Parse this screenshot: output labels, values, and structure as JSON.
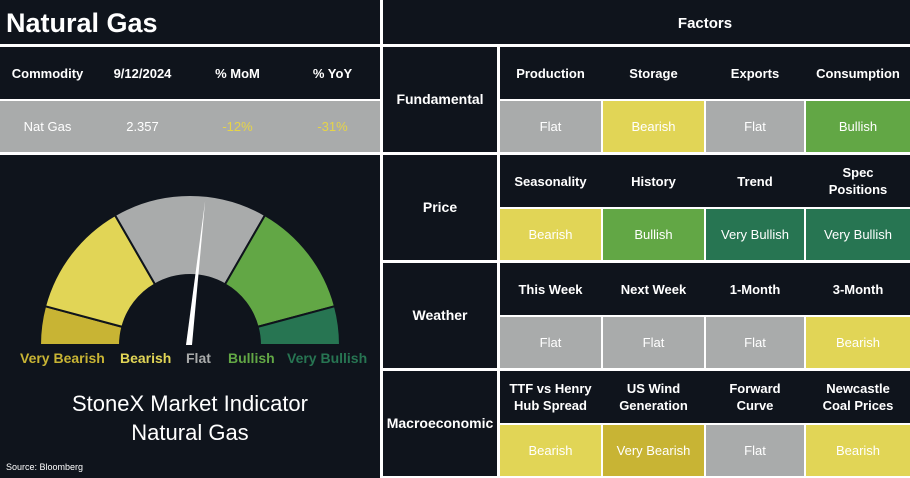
{
  "header": {
    "title": "Natural Gas",
    "factors_title": "Factors"
  },
  "commodity_table": {
    "columns": [
      "Commodity",
      "9/12/2024",
      "% MoM",
      "% YoY"
    ],
    "row": [
      "Nat Gas",
      "2.357",
      "-12%",
      "-31%"
    ]
  },
  "gauge": {
    "labels": [
      "Very Bearish",
      "Bearish",
      "Flat",
      "Bullish",
      "Very Bullish"
    ],
    "reading": "Flat",
    "indicator_line1": "StoneX Market Indicator",
    "indicator_line2": "Natural Gas"
  },
  "source": "Source: Bloomberg",
  "factors": [
    {
      "category": "Fundamental",
      "items": [
        {
          "name": "Production",
          "value": "Flat"
        },
        {
          "name": "Storage",
          "value": "Bearish"
        },
        {
          "name": "Exports",
          "value": "Flat"
        },
        {
          "name": "Consumption",
          "value": "Bullish"
        }
      ]
    },
    {
      "category": "Price",
      "items": [
        {
          "name": "Seasonality",
          "value": "Bearish"
        },
        {
          "name": "History",
          "value": "Bullish"
        },
        {
          "name": "Trend",
          "value": "Very Bullish"
        },
        {
          "name": "Spec Positions",
          "value": "Very Bullish"
        }
      ]
    },
    {
      "category": "Weather",
      "items": [
        {
          "name": "This Week",
          "value": "Flat"
        },
        {
          "name": "Next Week",
          "value": "Flat"
        },
        {
          "name": "1-Month",
          "value": "Flat"
        },
        {
          "name": "3-Month",
          "value": "Bearish"
        }
      ]
    },
    {
      "category": "Macroeconomic",
      "items": [
        {
          "name": "TTF vs Henry Hub Spread",
          "value": "Bearish"
        },
        {
          "name": "US Wind Generation",
          "value": "Very Bearish"
        },
        {
          "name": "Forward Curve",
          "value": "Flat"
        },
        {
          "name": "Newcastle Coal Prices",
          "value": "Bearish"
        }
      ]
    }
  ],
  "colors": {
    "background": "#0f141c",
    "very_bearish": "#c8b434",
    "bearish": "#e1d556",
    "flat": "#a9abab",
    "bullish": "#62a745",
    "very_bullish": "#277552",
    "mom_yoy_text": "#e6d447"
  }
}
